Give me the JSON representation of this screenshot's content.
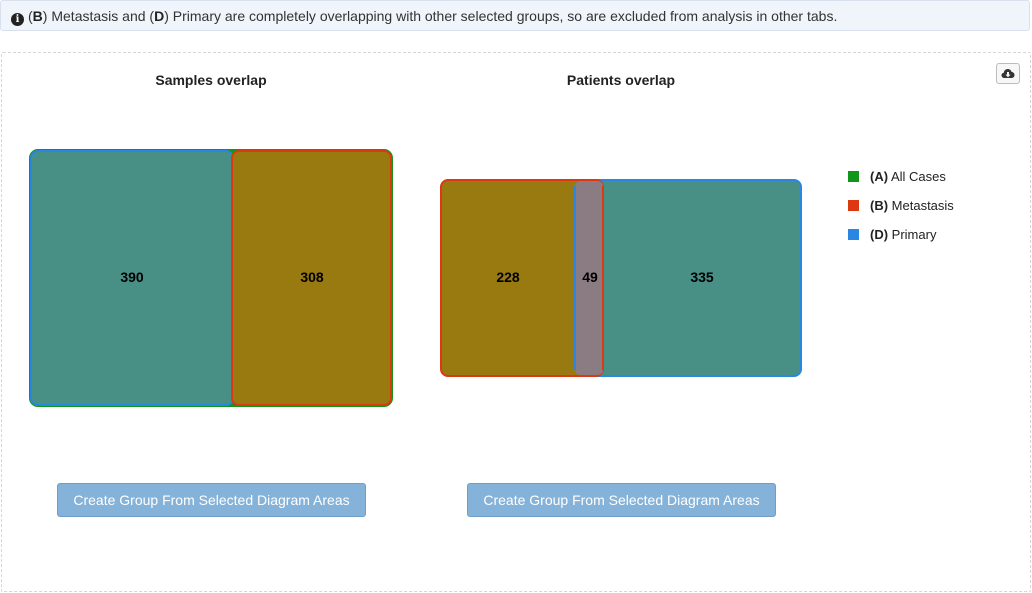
{
  "banner": {
    "group_b": "B",
    "group_b_name": "Metastasis and",
    "group_d": "D",
    "text_after": "Primary are completely overlapping with other selected groups, so are excluded from analysis in other tabs."
  },
  "samples": {
    "title": "Samples overlap",
    "regions": {
      "primary_only": "390",
      "metastasis_overlap": "308"
    }
  },
  "patients": {
    "title": "Patients overlap",
    "regions": {
      "metastasis_only": "228",
      "triple_overlap": "49",
      "primary_only": "335"
    }
  },
  "legend": [
    {
      "key": "(A)",
      "name": "All Cases",
      "color": "#109618"
    },
    {
      "key": "(B)",
      "name": "Metastasis",
      "color": "#dc3912"
    },
    {
      "key": "(D)",
      "name": "Primary",
      "color": "#2986e2"
    }
  ],
  "colors": {
    "teal_region": "#488f85",
    "olive_region": "#987a10",
    "mauve_region": "#8b7b82"
  },
  "buttons": {
    "create_group_samples": "Create Group From Selected Diagram Areas",
    "create_group_patients": "Create Group From Selected Diagram Areas"
  },
  "icons": {
    "info": "info-circle-icon",
    "download": "cloud-download-icon"
  }
}
